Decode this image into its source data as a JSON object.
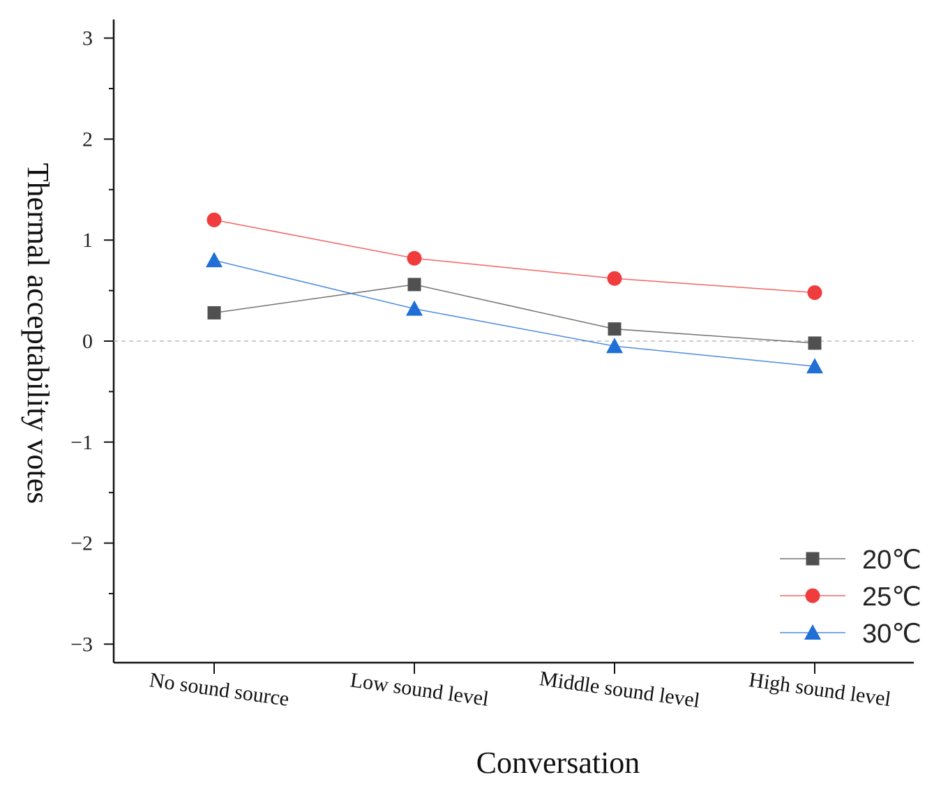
{
  "chart_data": {
    "type": "line",
    "xlabel": "Conversation",
    "ylabel": "Thermal acceptability votes",
    "categories": [
      "No sound source",
      "Low sound level",
      "Middle sound level",
      "High sound level"
    ],
    "ylim": [
      -3.2,
      3.3
    ],
    "yticks": [
      -3,
      -2,
      -1,
      0,
      1,
      2,
      3
    ],
    "ytick_labels": [
      "−3",
      "−2",
      "−1",
      "0",
      "1",
      "2",
      "3"
    ],
    "reference_line": 0,
    "grid": false,
    "legend_position": "bottom-right",
    "series": [
      {
        "name": "20℃",
        "values": [
          0.28,
          0.56,
          0.12,
          -0.02
        ],
        "color": "#505050",
        "marker": "square"
      },
      {
        "name": "25℃",
        "values": [
          1.2,
          0.82,
          0.62,
          0.48
        ],
        "color": "#f03c3c",
        "marker": "circle"
      },
      {
        "name": "30℃",
        "values": [
          0.8,
          0.32,
          -0.05,
          -0.25
        ],
        "color": "#1f6fd6",
        "marker": "triangle"
      }
    ]
  }
}
